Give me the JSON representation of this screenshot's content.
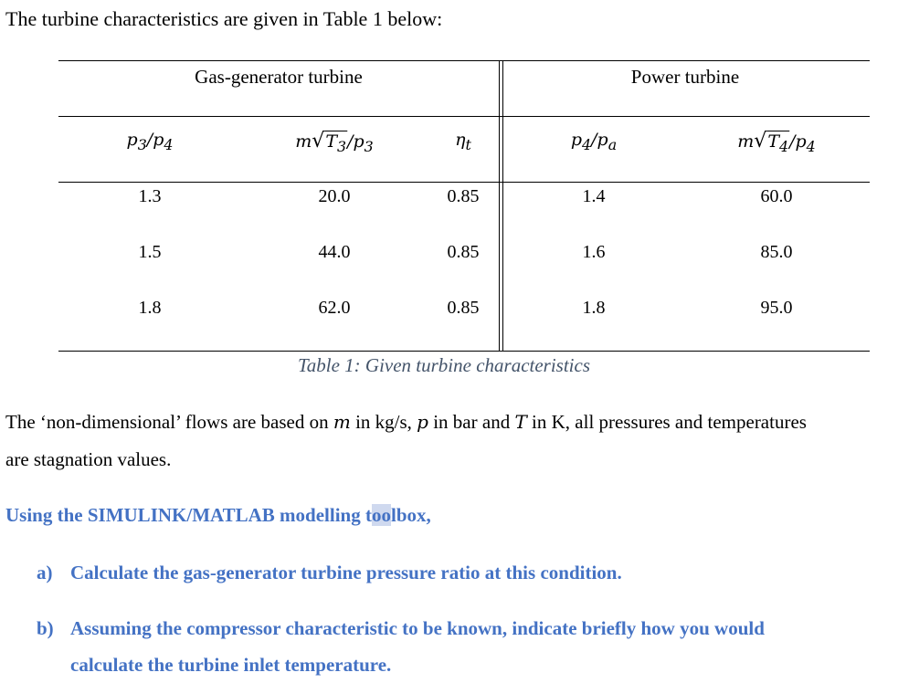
{
  "intro": "The turbine characteristics are given in Table 1 below:",
  "table": {
    "group_headers": [
      "Gas-generator turbine",
      "Power turbine"
    ],
    "columns": [
      "p₃/p₄",
      "m√T₃/p₃",
      "ηₜ",
      "p₄/pₐ",
      "m√T₄/p₄"
    ],
    "rows": [
      [
        "1.3",
        "20.0",
        "0.85",
        "1.4",
        "60.0"
      ],
      [
        "1.5",
        "44.0",
        "0.85",
        "1.6",
        "85.0"
      ],
      [
        "1.8",
        "62.0",
        "0.85",
        "1.8",
        "95.0"
      ]
    ],
    "caption": "Table 1: Given turbine characteristics"
  },
  "paragraph": {
    "line1": "The ‘non-dimensional’ flows are based on m in kg/s, p in bar and T in K, all pressures and temperatures",
    "line2": "are stagnation values."
  },
  "instruction": {
    "heading": "Using the SIMULINK/MATLAB modelling toolbox,",
    "item_a_marker": "a)",
    "item_a": "Calculate the gas-generator turbine pressure ratio at this condition.",
    "item_b_marker": "b)",
    "item_b_line1": "Assuming the compressor characteristic to be known, indicate briefly how you would",
    "item_b_line2": "calculate the turbine inlet temperature."
  }
}
